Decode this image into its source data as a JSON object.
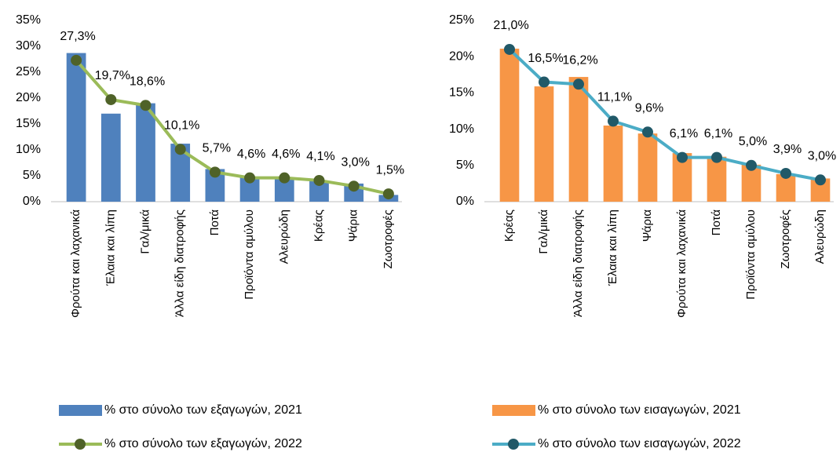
{
  "chart_data": [
    {
      "type": "bar",
      "categories": [
        "Φρούτα και λαχανικά",
        "Έλαια και λίπη",
        "Γαλ/μικά",
        "Άλλα είδη διατροφής",
        "Ποτά",
        "Προϊόντα αμύλου",
        "Αλευρώδη",
        "Κρέας",
        "Ψάρια",
        "Ζωοτροφές"
      ],
      "series": [
        {
          "name": "% στο σύνολο των εξαγωγών, 2021",
          "type": "bar",
          "color": "#4f81bd",
          "values": [
            28.7,
            17.0,
            19.0,
            11.2,
            6.3,
            4.8,
            4.5,
            4.0,
            3.5,
            1.3
          ]
        },
        {
          "name": "% στο σύνολο των εξαγωγών, 2022",
          "type": "line",
          "color": "#9bbb59",
          "marker_color": "#4f6228",
          "values": [
            27.3,
            19.7,
            18.6,
            10.1,
            5.7,
            4.6,
            4.6,
            4.1,
            3.0,
            1.5
          ],
          "value_labels": [
            "27,3%",
            "19,7%",
            "18,6%",
            "10,1%",
            "5,7%",
            "4,6%",
            "4,6%",
            "4,1%",
            "3,0%",
            "1,5%"
          ]
        }
      ],
      "ylim": [
        0,
        35
      ],
      "yticks": [
        {
          "value": 0,
          "label": "0%"
        },
        {
          "value": 5,
          "label": "5%"
        },
        {
          "value": 10,
          "label": "10%"
        },
        {
          "value": 15,
          "label": "15%"
        },
        {
          "value": 20,
          "label": "20%"
        },
        {
          "value": 25,
          "label": "25%"
        },
        {
          "value": 30,
          "label": "30%"
        },
        {
          "value": 35,
          "label": "35%"
        }
      ]
    },
    {
      "type": "bar",
      "categories": [
        "Κρέας",
        "Γαλ/μικά",
        "Άλλα είδη διατροφής",
        "Έλαια και λίπη",
        "Ψάρια",
        "Φρούτα και λαχανικά",
        "Ποτά",
        "Προϊόντα αμύλου",
        "Ζωοτροφές",
        "Αλευρώδη"
      ],
      "series": [
        {
          "name": "% στο σύνολο των εισαγωγών, 2021",
          "type": "bar",
          "color": "#f79646",
          "values": [
            21.1,
            15.9,
            17.2,
            10.5,
            9.4,
            6.7,
            6.2,
            5.1,
            3.8,
            3.2
          ]
        },
        {
          "name": "% στο σύνολο των εισαγωγών, 2022",
          "type": "line",
          "color": "#4bacc6",
          "marker_color": "#215968",
          "values": [
            21.0,
            16.5,
            16.2,
            11.1,
            9.6,
            6.1,
            6.1,
            5.0,
            3.9,
            3.0
          ],
          "value_labels": [
            "21,0%",
            "16,5%",
            "16,2%",
            "11,1%",
            "9,6%",
            "6,1%",
            "6,1%",
            "5,0%",
            "3,9%",
            "3,0%"
          ]
        }
      ],
      "ylim": [
        0,
        25
      ],
      "yticks": [
        {
          "value": 0,
          "label": "0%"
        },
        {
          "value": 5,
          "label": "5%"
        },
        {
          "value": 10,
          "label": "10%"
        },
        {
          "value": 15,
          "label": "15%"
        },
        {
          "value": 20,
          "label": "20%"
        },
        {
          "value": 25,
          "label": "25%"
        }
      ]
    }
  ]
}
